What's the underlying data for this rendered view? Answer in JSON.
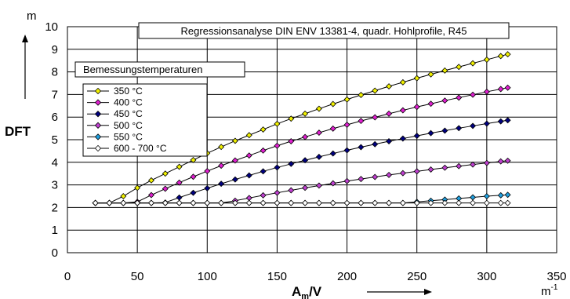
{
  "chart_data": {
    "type": "line",
    "title": "Regressionsanalyse DIN ENV 13381-4, quadr. Hohlprofile, R45",
    "xlabel": "A",
    "xlabel_sub": "m",
    "xlabel_rest": "/V",
    "xunit": "m",
    "xunit_sup": "-1",
    "ylabel": "DFT",
    "yunit": "m",
    "xlim": [
      0,
      350
    ],
    "ylim": [
      0,
      10
    ],
    "x_ticks": [
      0,
      50,
      100,
      150,
      200,
      250,
      300,
      350
    ],
    "y_ticks": [
      0,
      1,
      2,
      3,
      4,
      5,
      6,
      7,
      8,
      9,
      10
    ],
    "grid": true,
    "legend_title": "Bemessungstemperaturen",
    "legend_position": "top-left",
    "x": [
      20,
      30,
      40,
      50,
      60,
      70,
      80,
      90,
      100,
      110,
      120,
      130,
      140,
      150,
      160,
      170,
      180,
      190,
      200,
      210,
      220,
      230,
      240,
      250,
      260,
      270,
      280,
      290,
      300,
      310,
      315
    ],
    "series": [
      {
        "name": "350 °C",
        "color": "#f0f000",
        "marker": "diamond",
        "values": [
          2.2,
          2.2,
          2.5,
          2.87,
          3.2,
          3.5,
          3.8,
          4.1,
          4.4,
          4.68,
          4.95,
          5.2,
          5.45,
          5.7,
          5.93,
          6.15,
          6.37,
          6.58,
          6.78,
          6.98,
          7.17,
          7.36,
          7.54,
          7.72,
          7.89,
          8.06,
          8.22,
          8.38,
          8.54,
          8.7,
          8.78
        ]
      },
      {
        "name": "400 °C",
        "color": "#e020d0",
        "marker": "diamond",
        "values": [
          2.2,
          2.2,
          2.2,
          2.25,
          2.55,
          2.83,
          3.1,
          3.36,
          3.61,
          3.85,
          4.08,
          4.3,
          4.52,
          4.73,
          4.93,
          5.12,
          5.31,
          5.49,
          5.66,
          5.83,
          5.99,
          6.15,
          6.3,
          6.45,
          6.59,
          6.73,
          6.86,
          6.99,
          7.12,
          7.24,
          7.3
        ]
      },
      {
        "name": "450 °C",
        "color": "#000080",
        "marker": "diamond",
        "values": [
          2.2,
          2.2,
          2.2,
          2.2,
          2.2,
          2.22,
          2.44,
          2.65,
          2.85,
          3.05,
          3.24,
          3.42,
          3.6,
          3.77,
          3.93,
          4.09,
          4.24,
          4.39,
          4.53,
          4.67,
          4.8,
          4.93,
          5.05,
          5.17,
          5.29,
          5.4,
          5.51,
          5.61,
          5.71,
          5.81,
          5.86
        ]
      },
      {
        "name": "500 °C",
        "color": "#c040d0",
        "marker": "diamond",
        "values": [
          2.2,
          2.2,
          2.2,
          2.2,
          2.2,
          2.2,
          2.2,
          2.2,
          2.2,
          2.2,
          2.3,
          2.42,
          2.54,
          2.65,
          2.76,
          2.87,
          2.97,
          3.07,
          3.17,
          3.26,
          3.35,
          3.44,
          3.52,
          3.6,
          3.68,
          3.76,
          3.83,
          3.9,
          3.97,
          4.04,
          4.07
        ]
      },
      {
        "name": "550 °C",
        "color": "#20a0e0",
        "marker": "diamond",
        "values": [
          2.2,
          2.2,
          2.2,
          2.2,
          2.2,
          2.2,
          2.2,
          2.2,
          2.2,
          2.2,
          2.2,
          2.2,
          2.2,
          2.2,
          2.2,
          2.2,
          2.2,
          2.2,
          2.2,
          2.2,
          2.2,
          2.2,
          2.2,
          2.25,
          2.3,
          2.35,
          2.4,
          2.45,
          2.5,
          2.54,
          2.56
        ]
      },
      {
        "name": "600 - 700 °C",
        "color": "#ffffff",
        "marker": "diamond",
        "values": [
          2.2,
          2.2,
          2.2,
          2.2,
          2.2,
          2.2,
          2.2,
          2.2,
          2.2,
          2.2,
          2.2,
          2.2,
          2.2,
          2.2,
          2.2,
          2.2,
          2.2,
          2.2,
          2.2,
          2.2,
          2.2,
          2.2,
          2.2,
          2.2,
          2.2,
          2.2,
          2.2,
          2.2,
          2.2,
          2.2,
          2.2
        ]
      }
    ]
  }
}
